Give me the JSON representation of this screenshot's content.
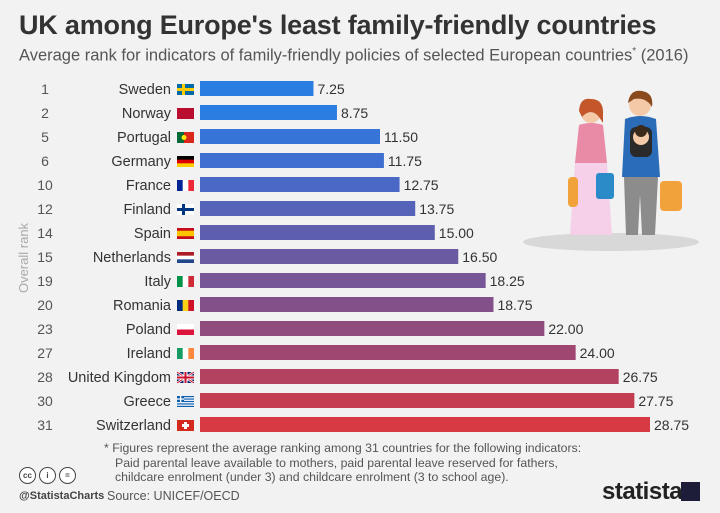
{
  "title": "UK among Europe's least family-friendly countries",
  "subtitle": "Average rank for indicators of family-friendly policies of selected European countries",
  "subtitle_mark": "*",
  "subtitle_year": " (2016)",
  "footnote": {
    "line1": "* Figures represent the average ranking among 31 countries for the following indicators:",
    "line2": "Paid parental leave available to mothers, paid parental leave reserved for fathers,",
    "line3": "childcare enrolment (under 3) and childcare enrolment (3 to school age)."
  },
  "cc_icons": [
    "cc",
    "i",
    "="
  ],
  "handle": "@StatistaCharts",
  "source": "Source: UNICEF/OECD",
  "logo": "statista",
  "chart_data": {
    "type": "bar",
    "orientation": "horizontal",
    "ylabel": "Overall rank",
    "categories": [
      "Sweden",
      "Norway",
      "Portugal",
      "Germany",
      "France",
      "Finland",
      "Spain",
      "Netherlands",
      "Italy",
      "Romania",
      "Poland",
      "Ireland",
      "United Kingdom",
      "Greece",
      "Switzerland"
    ],
    "ranks": [
      "1",
      "2",
      "5",
      "6",
      "10",
      "12",
      "14",
      "15",
      "19",
      "20",
      "23",
      "27",
      "28",
      "30",
      "31"
    ],
    "values": [
      7.25,
      8.75,
      11.5,
      11.75,
      12.75,
      13.75,
      15.0,
      16.5,
      18.25,
      18.75,
      22.0,
      24.0,
      26.75,
      27.75,
      28.75
    ],
    "value_labels": [
      "7.25",
      "8.75",
      "11.50",
      "11.75",
      "12.75",
      "13.75",
      "15.00",
      "16.50",
      "18.25",
      "18.75",
      "22.00",
      "24.00",
      "26.75",
      "27.75",
      "28.75"
    ],
    "xlim": [
      0,
      28.75
    ],
    "bar_colors": [
      "#2a7de1",
      "#2a7de1",
      "#3674d7",
      "#3f6fd0",
      "#4a68c6",
      "#5563b9",
      "#5d5fae",
      "#6a5aa2",
      "#765697",
      "#83508a",
      "#914c7e",
      "#a04771",
      "#b34260",
      "#c43d51",
      "#d83a44"
    ],
    "flags": {
      "Sweden": [
        "#006aa7",
        "#fecc00",
        "cross"
      ],
      "Norway": [
        "#ba0c2f",
        "#ffffff",
        "cross2",
        "#00205b"
      ],
      "Portugal": [
        "#046a38",
        "#da291c",
        "vsplit"
      ],
      "Germany": [
        "#000000",
        "#dd0000",
        "#ffce00",
        "h3"
      ],
      "France": [
        "#002395",
        "#ffffff",
        "#ed2939",
        "v3"
      ],
      "Finland": [
        "#ffffff",
        "#003580",
        "cross"
      ],
      "Spain": [
        "#c60b1e",
        "#ffc400",
        "#c60b1e",
        "h3s"
      ],
      "Netherlands": [
        "#ae1c28",
        "#ffffff",
        "#21468b",
        "h3"
      ],
      "Italy": [
        "#009246",
        "#ffffff",
        "#ce2b37",
        "v3"
      ],
      "Romania": [
        "#002b7f",
        "#fcd116",
        "#ce1126",
        "v3"
      ],
      "Poland": [
        "#ffffff",
        "#dc143c",
        "h2"
      ],
      "Ireland": [
        "#169b62",
        "#ffffff",
        "#ff883e",
        "v3"
      ],
      "United Kingdom": [
        "#012169",
        "#ffffff",
        "#c8102e",
        "uk"
      ],
      "Greece": [
        "#0d5eaf",
        "#ffffff",
        "gr"
      ],
      "Switzerland": [
        "#d52b1e",
        "#ffffff",
        "ch"
      ]
    }
  }
}
